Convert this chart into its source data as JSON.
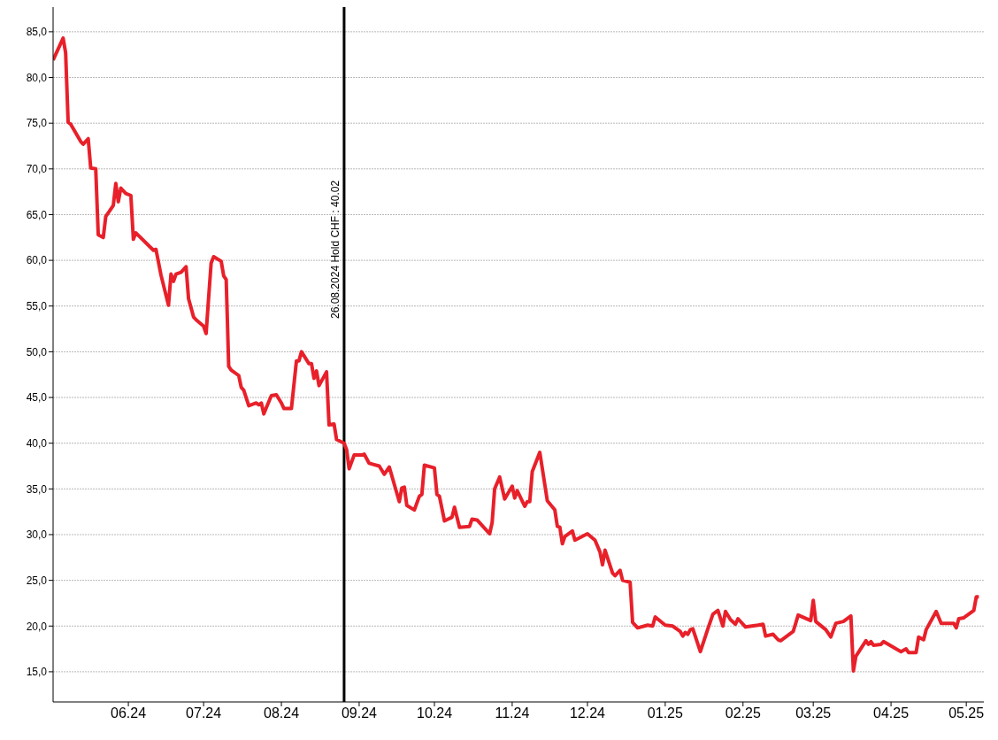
{
  "chart_data": {
    "type": "line",
    "x": [
      "2024-05-02",
      "2024-05-06",
      "2024-05-07",
      "2024-05-08",
      "2024-05-09",
      "2024-05-13",
      "2024-05-14",
      "2024-05-16",
      "2024-05-17",
      "2024-05-19",
      "2024-05-20",
      "2024-05-22",
      "2024-05-23",
      "2024-05-26",
      "2024-05-27",
      "2024-05-28",
      "2024-05-29",
      "2024-05-31",
      "2024-06-02",
      "2024-06-03",
      "2024-06-04",
      "2024-06-11",
      "2024-06-12",
      "2024-06-14",
      "2024-06-17",
      "2024-06-18",
      "2024-06-19",
      "2024-06-20",
      "2024-06-22",
      "2024-06-24",
      "2024-06-25",
      "2024-06-27",
      "2024-06-28",
      "2024-07-01",
      "2024-07-02",
      "2024-07-03",
      "2024-07-04",
      "2024-07-05",
      "2024-07-08",
      "2024-07-09",
      "2024-07-10",
      "2024-07-11",
      "2024-07-12",
      "2024-07-15",
      "2024-07-16",
      "2024-07-17",
      "2024-07-19",
      "2024-07-22",
      "2024-07-23",
      "2024-07-24",
      "2024-07-25",
      "2024-07-26",
      "2024-07-28",
      "2024-07-30",
      "2024-08-01",
      "2024-08-02",
      "2024-08-05",
      "2024-08-07",
      "2024-08-08",
      "2024-08-09",
      "2024-08-12",
      "2024-08-13",
      "2024-08-14",
      "2024-08-15",
      "2024-08-16",
      "2024-08-19",
      "2024-08-20",
      "2024-08-22",
      "2024-08-23",
      "2024-08-26",
      "2024-08-27",
      "2024-08-28",
      "2024-08-30",
      "2024-09-02",
      "2024-09-03",
      "2024-09-05",
      "2024-09-09",
      "2024-09-11",
      "2024-09-13",
      "2024-09-17",
      "2024-09-18",
      "2024-09-19",
      "2024-09-20",
      "2024-09-23",
      "2024-09-25",
      "2024-09-26",
      "2024-09-27",
      "2024-10-01",
      "2024-10-02",
      "2024-10-03",
      "2024-10-05",
      "2024-10-08",
      "2024-10-09",
      "2024-10-11",
      "2024-10-15",
      "2024-10-16",
      "2024-10-18",
      "2024-10-22",
      "2024-10-23",
      "2024-10-24",
      "2024-10-25",
      "2024-10-27",
      "2024-10-29",
      "2024-11-01",
      "2024-11-02",
      "2024-11-03",
      "2024-11-06",
      "2024-11-07",
      "2024-11-08",
      "2024-11-09",
      "2024-11-12",
      "2024-11-15",
      "2024-11-18",
      "2024-11-19",
      "2024-11-20",
      "2024-11-21",
      "2024-11-22",
      "2024-11-25",
      "2024-11-26",
      "2024-12-01",
      "2024-12-04",
      "2024-12-06",
      "2024-12-07",
      "2024-12-08",
      "2024-12-11",
      "2024-12-12",
      "2024-12-14",
      "2024-12-15",
      "2024-12-18",
      "2024-12-19",
      "2024-12-21",
      "2024-12-25",
      "2024-12-27",
      "2024-12-28",
      "2025-01-01",
      "2025-01-04",
      "2025-01-07",
      "2025-01-08",
      "2025-01-09",
      "2025-01-10",
      "2025-01-11",
      "2025-01-12",
      "2025-01-15",
      "2025-01-18",
      "2025-01-20",
      "2025-01-22",
      "2025-01-24",
      "2025-01-25",
      "2025-01-27",
      "2025-01-29",
      "2025-01-30",
      "2025-02-02",
      "2025-02-07",
      "2025-02-09",
      "2025-02-10",
      "2025-02-13",
      "2025-02-15",
      "2025-02-16",
      "2025-02-21",
      "2025-02-23",
      "2025-02-28",
      "2025-03-01",
      "2025-03-02",
      "2025-03-06",
      "2025-03-08",
      "2025-03-10",
      "2025-03-13",
      "2025-03-16",
      "2025-03-17",
      "2025-03-18",
      "2025-03-22",
      "2025-03-23",
      "2025-03-24",
      "2025-03-25",
      "2025-03-28",
      "2025-03-29",
      "2025-04-03",
      "2025-04-05",
      "2025-04-07",
      "2025-04-08",
      "2025-04-11",
      "2025-04-12",
      "2025-04-14",
      "2025-04-15",
      "2025-04-19",
      "2025-04-21",
      "2025-04-26",
      "2025-04-27",
      "2025-04-28",
      "2025-04-30",
      "2025-05-04",
      "2025-05-05",
      "2025-05-06"
    ],
    "series": [
      {
        "color": "#e8202a",
        "values": [
          81.9,
          84.3,
          82.7,
          75.1,
          74.9,
          73.0,
          72.7,
          73.3,
          70.1,
          70.0,
          62.8,
          62.5,
          64.8,
          66.0,
          68.4,
          66.4,
          67.9,
          67.3,
          67.1,
          62.3,
          63.0,
          61.1,
          61.2,
          58.4,
          55.1,
          58.5,
          57.7,
          58.5,
          58.7,
          59.3,
          55.8,
          53.8,
          53.5,
          52.8,
          52.0,
          55.9,
          59.7,
          60.4,
          59.9,
          58.3,
          57.9,
          48.4,
          48.0,
          47.4,
          46.1,
          45.8,
          44.1,
          44.4,
          44.2,
          44.4,
          43.2,
          43.9,
          45.2,
          45.3,
          44.4,
          43.8,
          43.8,
          49.0,
          49.0,
          50.0,
          48.7,
          48.7,
          47.1,
          47.9,
          46.3,
          47.8,
          42.0,
          42.1,
          40.4,
          40.0,
          39.3,
          37.2,
          38.7,
          38.7,
          38.8,
          37.8,
          37.5,
          36.6,
          37.4,
          33.6,
          35.1,
          35.2,
          33.2,
          32.7,
          34.2,
          34.4,
          37.6,
          37.3,
          34.4,
          34.2,
          31.5,
          31.9,
          33.0,
          30.8,
          30.9,
          31.7,
          31.6,
          30.4,
          30.1,
          31.3,
          35.0,
          36.3,
          33.9,
          35.3,
          34.0,
          34.8,
          33.1,
          33.6,
          33.6,
          36.9,
          39.0,
          33.7,
          32.7,
          30.9,
          30.8,
          29.0,
          29.8,
          30.4,
          29.4,
          30.1,
          29.4,
          28.1,
          26.7,
          28.3,
          25.8,
          25.5,
          26.1,
          25.0,
          24.8,
          20.4,
          19.8,
          20.1,
          20.0,
          21.0,
          20.1,
          20.0,
          19.4,
          18.9,
          19.3,
          19.1,
          19.6,
          19.7,
          17.2,
          19.7,
          21.3,
          21.7,
          20.0,
          21.6,
          20.7,
          20.2,
          20.8,
          19.9,
          20.1,
          20.2,
          18.9,
          19.1,
          18.5,
          18.4,
          19.4,
          21.2,
          20.6,
          22.8,
          20.5,
          19.6,
          18.8,
          20.3,
          20.5,
          21.1,
          15.1,
          16.7,
          18.4,
          18.0,
          18.3,
          17.9,
          18.0,
          18.3,
          17.5,
          17.2,
          17.5,
          17.1,
          17.1,
          18.8,
          18.5,
          19.6,
          21.6,
          20.3,
          20.3,
          19.8,
          20.8,
          20.9,
          21.7,
          23.2,
          23.2
        ]
      }
    ],
    "xlim": [
      "2024-05-02",
      "2025-05-08"
    ],
    "xticks": [
      {
        "value": "2024-06-01",
        "label": "06.24"
      },
      {
        "value": "2024-07-01",
        "label": "07.24"
      },
      {
        "value": "2024-08-01",
        "label": "08.24"
      },
      {
        "value": "2024-09-01",
        "label": "09.24"
      },
      {
        "value": "2024-10-01",
        "label": "10.24"
      },
      {
        "value": "2024-11-01",
        "label": "11.24"
      },
      {
        "value": "2024-12-01",
        "label": "12.24"
      },
      {
        "value": "2025-01-01",
        "label": "01.25"
      },
      {
        "value": "2025-02-01",
        "label": "02.25"
      },
      {
        "value": "2025-03-01",
        "label": "03.25"
      },
      {
        "value": "2025-04-01",
        "label": "04.25"
      },
      {
        "value": "2025-05-01",
        "label": "05.25"
      }
    ],
    "ylim": [
      11.7,
      87.7
    ],
    "yticks": [
      {
        "value": 15,
        "label": "15,0"
      },
      {
        "value": 20,
        "label": "20,0"
      },
      {
        "value": 25,
        "label": "25,0"
      },
      {
        "value": 30,
        "label": "30,0"
      },
      {
        "value": 35,
        "label": "35,0"
      },
      {
        "value": 40,
        "label": "40,0"
      },
      {
        "value": 45,
        "label": "45,0"
      },
      {
        "value": 50,
        "label": "50,0"
      },
      {
        "value": 55,
        "label": "55,0"
      },
      {
        "value": 60,
        "label": "60,0"
      },
      {
        "value": 65,
        "label": "65,0"
      },
      {
        "value": 70,
        "label": "70,0"
      },
      {
        "value": 75,
        "label": "75,0"
      },
      {
        "value": 80,
        "label": "80,0"
      },
      {
        "value": 85,
        "label": "85,0"
      }
    ],
    "grid": "y",
    "marker": "none",
    "line_style": "solid",
    "ref_lines": [
      {
        "axis": "x",
        "value": "2024-08-26",
        "label": "26.08.2024 Hold CHF : 40.02",
        "color": "#000000"
      }
    ]
  }
}
